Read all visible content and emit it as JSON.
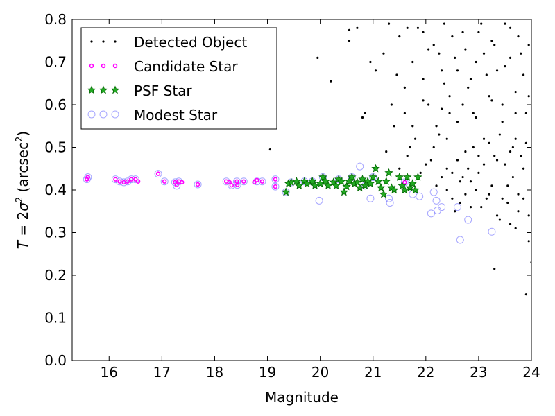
{
  "chart_data": {
    "type": "scatter",
    "xlabel": "Magnitude",
    "ylabel": {
      "italic_var": "T",
      "eq": " = 2",
      "sigma": "σ",
      "sup": "2",
      "mid": " (arcsec",
      "close": ")"
    },
    "xlim": [
      15.3,
      24
    ],
    "ylim": [
      0,
      0.8
    ],
    "xticks": [
      16,
      17,
      18,
      19,
      20,
      21,
      22,
      23,
      24
    ],
    "yticks": [
      0.0,
      0.1,
      0.2,
      0.3,
      0.4,
      0.5,
      0.6,
      0.7,
      0.8
    ],
    "ytick_labels": [
      "0.0",
      "0.1",
      "0.2",
      "0.3",
      "0.4",
      "0.5",
      "0.6",
      "0.7",
      "0.8"
    ],
    "legend_placement": "top-left",
    "grid": false,
    "series": [
      {
        "name": "Detected Object",
        "marker": "dot",
        "color": "#000000",
        "points": [
          [
            19.05,
            0.495
          ],
          [
            19.95,
            0.71
          ],
          [
            20.2,
            0.655
          ],
          [
            20.55,
            0.75
          ],
          [
            20.55,
            0.775
          ],
          [
            20.7,
            0.78
          ],
          [
            20.8,
            0.57
          ],
          [
            20.85,
            0.58
          ],
          [
            20.95,
            0.7
          ],
          [
            21.05,
            0.68
          ],
          [
            21.2,
            0.72
          ],
          [
            21.35,
            0.6
          ],
          [
            21.4,
            0.55
          ],
          [
            21.5,
            0.76
          ],
          [
            21.6,
            0.64
          ],
          [
            21.7,
            0.5
          ],
          [
            21.75,
            0.55
          ],
          [
            21.85,
            0.78
          ],
          [
            21.95,
            0.66
          ],
          [
            22.05,
            0.6
          ],
          [
            22.1,
            0.47
          ],
          [
            22.15,
            0.74
          ],
          [
            22.2,
            0.41
          ],
          [
            22.25,
            0.53
          ],
          [
            22.3,
            0.68
          ],
          [
            22.35,
            0.79
          ],
          [
            22.4,
            0.45
          ],
          [
            22.45,
            0.62
          ],
          [
            22.5,
            0.38
          ],
          [
            22.55,
            0.71
          ],
          [
            22.6,
            0.56
          ],
          [
            22.65,
            0.42
          ],
          [
            22.7,
            0.77
          ],
          [
            22.75,
            0.49
          ],
          [
            22.8,
            0.64
          ],
          [
            22.85,
            0.36
          ],
          [
            22.9,
            0.58
          ],
          [
            22.95,
            0.7
          ],
          [
            23.0,
            0.44
          ],
          [
            23.05,
            0.79
          ],
          [
            23.1,
            0.52
          ],
          [
            23.15,
            0.67
          ],
          [
            23.2,
            0.39
          ],
          [
            23.25,
            0.61
          ],
          [
            23.3,
            0.74
          ],
          [
            23.35,
            0.47
          ],
          [
            23.4,
            0.33
          ],
          [
            23.45,
            0.56
          ],
          [
            23.5,
            0.69
          ],
          [
            23.55,
            0.41
          ],
          [
            23.6,
            0.78
          ],
          [
            23.65,
            0.5
          ],
          [
            23.7,
            0.63
          ],
          [
            23.75,
            0.35
          ],
          [
            23.8,
            0.72
          ],
          [
            23.85,
            0.45
          ],
          [
            23.9,
            0.58
          ],
          [
            23.95,
            0.28
          ],
          [
            23.3,
            0.215
          ],
          [
            23.9,
            0.155
          ],
          [
            24.0,
            0.23
          ],
          [
            23.75,
            0.39
          ],
          [
            23.45,
            0.38
          ],
          [
            22.85,
            0.42
          ],
          [
            22.95,
            0.4
          ],
          [
            23.15,
            0.38
          ],
          [
            23.25,
            0.41
          ],
          [
            23.55,
            0.37
          ],
          [
            23.65,
            0.43
          ],
          [
            23.85,
            0.38
          ],
          [
            23.95,
            0.34
          ],
          [
            23.7,
            0.31
          ],
          [
            22.55,
            0.35
          ],
          [
            22.65,
            0.37
          ],
          [
            22.75,
            0.39
          ],
          [
            23.05,
            0.36
          ],
          [
            23.35,
            0.34
          ],
          [
            23.6,
            0.32
          ],
          [
            21.9,
            0.44
          ],
          [
            22.0,
            0.46
          ],
          [
            21.65,
            0.48
          ],
          [
            22.3,
            0.43
          ],
          [
            22.4,
            0.4
          ],
          [
            22.5,
            0.44
          ],
          [
            22.6,
            0.47
          ],
          [
            22.7,
            0.43
          ],
          [
            22.8,
            0.45
          ],
          [
            22.9,
            0.5
          ],
          [
            23.0,
            0.48
          ],
          [
            23.1,
            0.46
          ],
          [
            23.2,
            0.51
          ],
          [
            23.3,
            0.48
          ],
          [
            23.4,
            0.53
          ],
          [
            23.5,
            0.46
          ],
          [
            23.6,
            0.49
          ],
          [
            23.7,
            0.52
          ],
          [
            23.8,
            0.48
          ],
          [
            23.9,
            0.51
          ],
          [
            22.2,
            0.55
          ],
          [
            22.45,
            0.58
          ],
          [
            22.7,
            0.6
          ],
          [
            22.95,
            0.57
          ],
          [
            23.2,
            0.62
          ],
          [
            23.45,
            0.6
          ],
          [
            23.7,
            0.58
          ],
          [
            23.95,
            0.62
          ],
          [
            22.35,
            0.65
          ],
          [
            22.6,
            0.68
          ],
          [
            22.85,
            0.66
          ],
          [
            23.1,
            0.72
          ],
          [
            23.35,
            0.68
          ],
          [
            23.6,
            0.71
          ],
          [
            23.85,
            0.67
          ],
          [
            22.25,
            0.72
          ],
          [
            22.5,
            0.76
          ],
          [
            22.75,
            0.73
          ],
          [
            23.0,
            0.77
          ],
          [
            23.25,
            0.75
          ],
          [
            23.5,
            0.79
          ],
          [
            23.75,
            0.76
          ],
          [
            23.95,
            0.74
          ],
          [
            21.5,
            0.45
          ],
          [
            21.8,
            0.52
          ],
          [
            22.15,
            0.5
          ],
          [
            22.4,
            0.52
          ],
          [
            21.25,
            0.49
          ],
          [
            21.6,
            0.58
          ],
          [
            21.95,
            0.61
          ],
          [
            22.3,
            0.59
          ],
          [
            21.45,
            0.67
          ],
          [
            21.75,
            0.7
          ],
          [
            22.05,
            0.73
          ],
          [
            21.3,
            0.79
          ],
          [
            21.65,
            0.78
          ],
          [
            21.95,
            0.77
          ]
        ]
      },
      {
        "name": "Candidate Star",
        "marker": "small-circle",
        "color": "#ff00ff",
        "points": [
          [
            15.58,
            0.425
          ],
          [
            15.6,
            0.43
          ],
          [
            16.12,
            0.425
          ],
          [
            16.2,
            0.42
          ],
          [
            16.28,
            0.418
          ],
          [
            16.35,
            0.42
          ],
          [
            16.42,
            0.425
          ],
          [
            16.5,
            0.425
          ],
          [
            16.55,
            0.42
          ],
          [
            16.93,
            0.438
          ],
          [
            17.05,
            0.42
          ],
          [
            17.25,
            0.418
          ],
          [
            17.28,
            0.412
          ],
          [
            17.32,
            0.42
          ],
          [
            17.38,
            0.418
          ],
          [
            17.68,
            0.413
          ],
          [
            18.22,
            0.42
          ],
          [
            18.28,
            0.418
          ],
          [
            18.32,
            0.411
          ],
          [
            18.42,
            0.42
          ],
          [
            18.43,
            0.412
          ],
          [
            18.55,
            0.42
          ],
          [
            18.75,
            0.418
          ],
          [
            18.8,
            0.423
          ],
          [
            18.9,
            0.42
          ],
          [
            19.15,
            0.425
          ],
          [
            19.15,
            0.408
          ],
          [
            21.6,
            0.418
          ]
        ]
      },
      {
        "name": "PSF Star",
        "marker": "star",
        "color": "#22aa22",
        "points": [
          [
            19.35,
            0.395
          ],
          [
            19.4,
            0.415
          ],
          [
            19.45,
            0.418
          ],
          [
            19.55,
            0.42
          ],
          [
            19.6,
            0.41
          ],
          [
            19.7,
            0.42
          ],
          [
            19.75,
            0.415
          ],
          [
            19.85,
            0.42
          ],
          [
            19.9,
            0.41
          ],
          [
            20.0,
            0.415
          ],
          [
            20.05,
            0.43
          ],
          [
            20.1,
            0.42
          ],
          [
            20.15,
            0.41
          ],
          [
            20.25,
            0.418
          ],
          [
            20.3,
            0.41
          ],
          [
            20.35,
            0.425
          ],
          [
            20.4,
            0.42
          ],
          [
            20.45,
            0.395
          ],
          [
            20.5,
            0.408
          ],
          [
            20.55,
            0.42
          ],
          [
            20.6,
            0.43
          ],
          [
            20.65,
            0.415
          ],
          [
            20.7,
            0.418
          ],
          [
            20.75,
            0.405
          ],
          [
            20.8,
            0.425
          ],
          [
            20.85,
            0.41
          ],
          [
            20.9,
            0.42
          ],
          [
            20.95,
            0.415
          ],
          [
            21.0,
            0.43
          ],
          [
            21.05,
            0.45
          ],
          [
            21.1,
            0.42
          ],
          [
            21.15,
            0.405
          ],
          [
            21.2,
            0.39
          ],
          [
            21.25,
            0.42
          ],
          [
            21.3,
            0.44
          ],
          [
            21.35,
            0.405
          ],
          [
            21.4,
            0.4
          ],
          [
            21.5,
            0.43
          ],
          [
            21.55,
            0.41
          ],
          [
            21.6,
            0.4
          ],
          [
            21.65,
            0.43
          ],
          [
            21.7,
            0.405
          ],
          [
            21.75,
            0.415
          ],
          [
            21.8,
            0.4
          ],
          [
            21.85,
            0.43
          ]
        ]
      },
      {
        "name": "Modest Star",
        "marker": "open-circle",
        "color": "#8080ff",
        "points": [
          [
            15.58,
            0.425
          ],
          [
            15.6,
            0.43
          ],
          [
            16.12,
            0.425
          ],
          [
            16.2,
            0.42
          ],
          [
            16.28,
            0.418
          ],
          [
            16.35,
            0.42
          ],
          [
            16.42,
            0.425
          ],
          [
            16.5,
            0.425
          ],
          [
            16.93,
            0.438
          ],
          [
            17.05,
            0.42
          ],
          [
            17.25,
            0.418
          ],
          [
            17.28,
            0.41
          ],
          [
            17.32,
            0.42
          ],
          [
            17.68,
            0.413
          ],
          [
            18.22,
            0.42
          ],
          [
            18.32,
            0.411
          ],
          [
            18.42,
            0.42
          ],
          [
            18.43,
            0.412
          ],
          [
            18.55,
            0.42
          ],
          [
            18.8,
            0.42
          ],
          [
            18.9,
            0.42
          ],
          [
            19.15,
            0.425
          ],
          [
            19.15,
            0.408
          ],
          [
            19.35,
            0.395
          ],
          [
            19.45,
            0.418
          ],
          [
            19.7,
            0.42
          ],
          [
            19.85,
            0.42
          ],
          [
            19.98,
            0.375
          ],
          [
            20.05,
            0.43
          ],
          [
            20.35,
            0.425
          ],
          [
            20.6,
            0.43
          ],
          [
            20.75,
            0.455
          ],
          [
            20.85,
            0.41
          ],
          [
            20.95,
            0.38
          ],
          [
            21.0,
            0.43
          ],
          [
            21.3,
            0.38
          ],
          [
            21.32,
            0.37
          ],
          [
            21.6,
            0.418
          ],
          [
            21.75,
            0.39
          ],
          [
            21.88,
            0.385
          ],
          [
            22.1,
            0.345
          ],
          [
            22.15,
            0.395
          ],
          [
            22.2,
            0.375
          ],
          [
            22.22,
            0.352
          ],
          [
            22.3,
            0.36
          ],
          [
            22.6,
            0.36
          ],
          [
            22.65,
            0.283
          ],
          [
            22.8,
            0.33
          ],
          [
            23.25,
            0.302
          ]
        ]
      }
    ]
  }
}
